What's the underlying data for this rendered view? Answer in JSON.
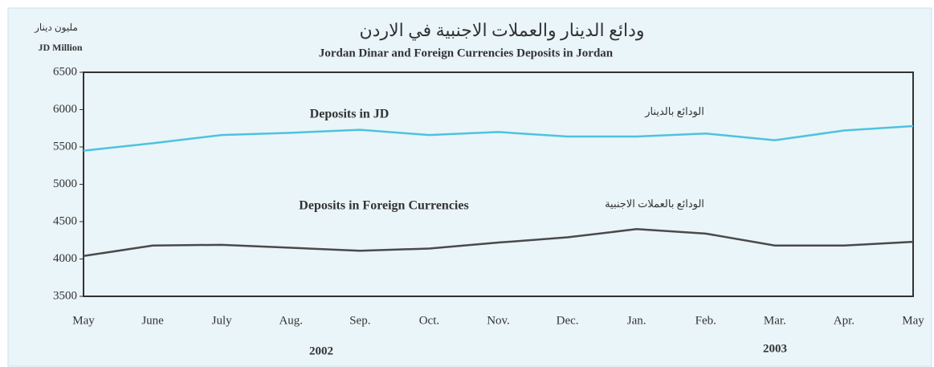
{
  "chart_data": {
    "type": "line",
    "title": "ودائع الدينار والعملات الاجنبية في الاردن",
    "subtitle": "Jordan Dinar and Foreign Currencies Deposits in Jordan",
    "y_label": "JD Million",
    "y_label_arabic": "مليون دينار",
    "categories": [
      "May",
      "June",
      "July",
      "Aug.",
      "Sep.",
      "Oct.",
      "Nov.",
      "Dec.",
      "Jan.",
      "Feb.",
      "Mar.",
      "Apr.",
      "May"
    ],
    "series": [
      {
        "name": "Deposits in JD",
        "name_arabic": "الودائع بالدينار",
        "color": "#4cc3e0",
        "values": [
          5450,
          5550,
          5660,
          5690,
          5730,
          5660,
          5700,
          5640,
          5640,
          5680,
          5590,
          5720,
          5780
        ]
      },
      {
        "name": "Deposits in Foreign Currencies",
        "name_arabic": "الودائع بالعملات الاجنبية",
        "color": "#4a4a4a",
        "values": [
          4040,
          4180,
          4190,
          4150,
          4110,
          4140,
          4220,
          4290,
          4400,
          4340,
          4180,
          4180,
          4230
        ]
      }
    ],
    "annotations": [
      "2002",
      "2003"
    ],
    "ylim": [
      3500,
      6500
    ],
    "yticks": [
      3500,
      4000,
      4500,
      5000,
      5500,
      6000,
      6500
    ],
    "grid": false
  }
}
